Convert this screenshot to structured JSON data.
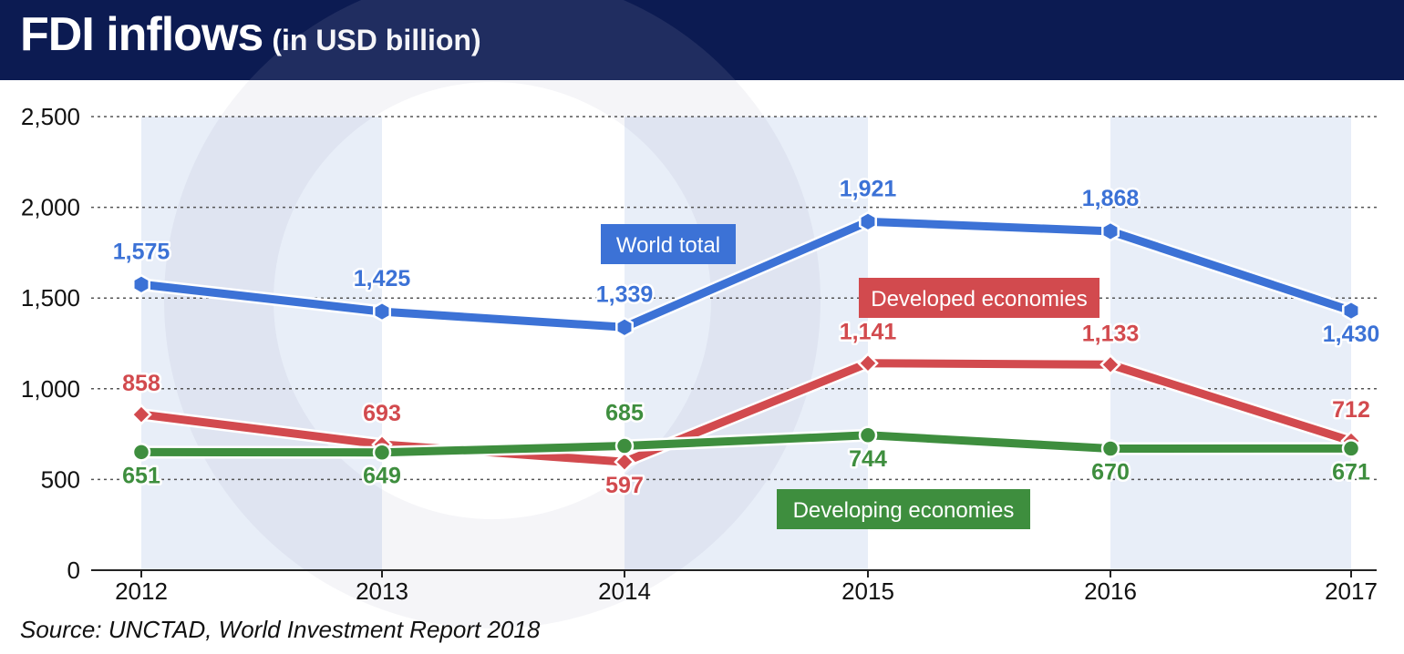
{
  "title": "FDI inflows",
  "subtitle": "(in USD billion)",
  "source": "Source: UNCTAD, World Investment Report 2018",
  "chart_data": {
    "type": "line",
    "x": [
      "2012",
      "2013",
      "2014",
      "2015",
      "2016",
      "2017"
    ],
    "ylim": [
      0,
      2500
    ],
    "yticks": [
      0,
      500,
      1000,
      1500,
      2000,
      2500
    ],
    "ytick_labels": [
      "0",
      "500",
      "1,000",
      "1,500",
      "2,000",
      "2,500"
    ],
    "grid": true,
    "series": [
      {
        "name": "World total",
        "values": [
          1575,
          1425,
          1339,
          1921,
          1868,
          1430
        ],
        "labels": [
          "1,575",
          "1,425",
          "1,339",
          "1,921",
          "1,868",
          "1,430"
        ],
        "color": "#3c72d6",
        "marker": "hexagon"
      },
      {
        "name": "Developed economies",
        "values": [
          858,
          693,
          597,
          1141,
          1133,
          712
        ],
        "labels": [
          "858",
          "693",
          "597",
          "1,141",
          "1,133",
          "712"
        ],
        "color": "#d24a4e",
        "marker": "diamond"
      },
      {
        "name": "Developing economies",
        "values": [
          651,
          649,
          685,
          744,
          670,
          671
        ],
        "labels": [
          "651",
          "649",
          "685",
          "744",
          "670",
          "671"
        ],
        "color": "#3e8e3e",
        "marker": "circle"
      }
    ]
  }
}
